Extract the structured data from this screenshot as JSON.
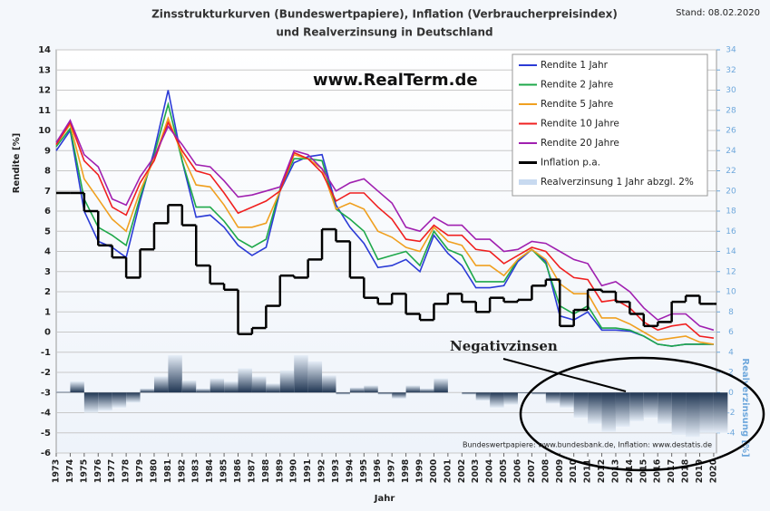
{
  "chart_data": {
    "type": "line",
    "title": "Zinsstrukturkurven (Bundeswertpapiere), Inflation (Verbraucherpreisindex)",
    "subtitle": "und Realverzinsung in Deutschland",
    "date_note": "Stand: 08.02.2020",
    "watermark": "www.RealTerm.de",
    "annotation": "Negativzinsen",
    "source": "Bundeswertpapiere: www.bundesbank.de,  Inflation: www.destatis.de",
    "x_label": "Jahr",
    "y_label": "Rendite [%]",
    "y2_label": "Realverzinsung [%]",
    "x": [
      1973,
      1974,
      1975,
      1976,
      1977,
      1978,
      1979,
      1980,
      1981,
      1982,
      1983,
      1984,
      1985,
      1986,
      1987,
      1988,
      1989,
      1990,
      1991,
      1992,
      1993,
      1994,
      1995,
      1996,
      1997,
      1998,
      1999,
      2000,
      2001,
      2002,
      2003,
      2004,
      2005,
      2006,
      2007,
      2008,
      2009,
      2010,
      2011,
      2012,
      2013,
      2014,
      2015,
      2016,
      2017,
      2018,
      2019,
      2020
    ],
    "xlim": [
      1973,
      2020.2
    ],
    "xticks": [
      1973,
      1974,
      1975,
      1976,
      1977,
      1978,
      1979,
      1980,
      1981,
      1982,
      1983,
      1984,
      1985,
      1986,
      1987,
      1988,
      1989,
      1990,
      1991,
      1992,
      1993,
      1994,
      1995,
      1996,
      1997,
      1998,
      1999,
      2000,
      2001,
      2002,
      2003,
      2004,
      2005,
      2006,
      2007,
      2008,
      2009,
      2010,
      2011,
      2012,
      2013,
      2014,
      2015,
      2016,
      2017,
      2018,
      2019,
      2020
    ],
    "ylim": [
      -6,
      14
    ],
    "yticks": [
      -6,
      -5,
      -4,
      -3,
      -2,
      -1,
      0,
      1,
      2,
      3,
      4,
      5,
      6,
      7,
      8,
      9,
      10,
      11,
      12,
      13,
      14
    ],
    "y2lim": [
      -6,
      34
    ],
    "y2ticks": [
      -4,
      -2,
      0,
      2,
      4,
      6,
      8,
      10,
      12,
      14,
      16,
      18,
      20,
      22,
      24,
      26,
      28,
      30,
      32,
      34
    ],
    "grid": true,
    "legend": "upper right",
    "series": [
      {
        "name": "Rendite 1 Jahr",
        "color": "#2b3bd6",
        "values": [
          9,
          10,
          6,
          4.5,
          4.2,
          3.7,
          6.5,
          9,
          12,
          8.5,
          5.7,
          5.8,
          5.2,
          4.3,
          3.8,
          4.2,
          7,
          8.4,
          8.7,
          8.8,
          6.3,
          5.2,
          4.4,
          3.2,
          3.3,
          3.6,
          3,
          4.8,
          3.9,
          3.3,
          2.2,
          2.2,
          2.3,
          3.5,
          4.1,
          3.5,
          0.8,
          0.6,
          1,
          0.1,
          0.1,
          0.05,
          -0.2,
          -0.6,
          -0.7,
          -0.6,
          -0.6,
          -0.6
        ]
      },
      {
        "name": "Rendite 2 Jahre",
        "color": "#1ea84a",
        "values": [
          9.2,
          10.1,
          6.6,
          5.2,
          4.8,
          4.3,
          6.7,
          8.8,
          11.3,
          8.5,
          6.2,
          6.2,
          5.5,
          4.6,
          4.2,
          4.6,
          7.1,
          8.6,
          8.6,
          8.5,
          6.1,
          5.6,
          5,
          3.6,
          3.8,
          4,
          3.3,
          5,
          4.1,
          3.8,
          2.5,
          2.5,
          2.5,
          3.6,
          4.1,
          3.4,
          1.3,
          0.9,
          1.3,
          0.2,
          0.2,
          0.1,
          -0.2,
          -0.6,
          -0.7,
          -0.6,
          -0.6,
          -0.6
        ]
      },
      {
        "name": "Rendite 5 Jahre",
        "color": "#f0a020",
        "values": [
          9.3,
          10.3,
          7.6,
          6.6,
          5.6,
          5,
          7,
          8.6,
          10.6,
          8.8,
          7.3,
          7.2,
          6.3,
          5.2,
          5.2,
          5.4,
          7,
          8.8,
          8.6,
          8.1,
          6.1,
          6.4,
          6.1,
          5,
          4.7,
          4.2,
          4,
          5.2,
          4.5,
          4.3,
          3.3,
          3.3,
          2.8,
          3.6,
          4.1,
          3.6,
          2.4,
          1.9,
          1.9,
          0.7,
          0.7,
          0.4,
          0,
          -0.4,
          -0.3,
          -0.2,
          -0.5,
          -0.6
        ]
      },
      {
        "name": "Rendite 10 Jahre",
        "color": "#f02020",
        "values": [
          9.3,
          10.4,
          8.5,
          7.8,
          6.2,
          5.8,
          7.4,
          8.5,
          10.4,
          9,
          8,
          7.8,
          6.9,
          5.9,
          6.2,
          6.5,
          7,
          8.9,
          8.6,
          7.9,
          6.5,
          6.9,
          6.9,
          6.2,
          5.6,
          4.6,
          4.5,
          5.3,
          4.8,
          4.8,
          4.1,
          4,
          3.4,
          3.8,
          4.2,
          4,
          3.2,
          2.7,
          2.6,
          1.5,
          1.6,
          1.2,
          0.5,
          0.1,
          0.3,
          0.4,
          -0.2,
          -0.3
        ]
      },
      {
        "name": "Rendite 20 Jahre",
        "color": "#a020b0",
        "values": [
          9.4,
          10.5,
          8.8,
          8.2,
          6.6,
          6.3,
          7.7,
          8.7,
          10.2,
          9.3,
          8.3,
          8.2,
          7.5,
          6.7,
          6.8,
          7,
          7.2,
          9,
          8.8,
          8.1,
          7,
          7.4,
          7.6,
          7,
          6.4,
          5.2,
          5,
          5.7,
          5.3,
          5.3,
          4.6,
          4.6,
          4,
          4.1,
          4.5,
          4.4,
          4,
          3.6,
          3.4,
          2.3,
          2.5,
          2,
          1.2,
          0.6,
          0.9,
          0.9,
          0.3,
          0.1
        ]
      },
      {
        "name": "Inflation p.a.",
        "color": "#000000",
        "step": true,
        "values": [
          6.9,
          6.9,
          6,
          4.3,
          3.7,
          2.7,
          4.1,
          5.4,
          6.3,
          5.3,
          3.3,
          2.4,
          2.1,
          -0.1,
          0.2,
          1.3,
          2.8,
          2.7,
          3.6,
          5.1,
          4.5,
          2.7,
          1.7,
          1.4,
          1.9,
          0.9,
          0.6,
          1.4,
          1.9,
          1.5,
          1,
          1.7,
          1.5,
          1.6,
          2.3,
          2.6,
          0.3,
          1.1,
          2.1,
          2,
          1.5,
          0.9,
          0.3,
          0.5,
          1.5,
          1.8,
          1.4,
          1.4
        ]
      },
      {
        "name": "Realverzinsung 1 Jahr abzgl. 2%",
        "color": "#c8daf0",
        "axis": "y2",
        "bars": true,
        "values": [
          0.1,
          1.1,
          -2,
          -1.8,
          -1.5,
          -1,
          0.4,
          1.6,
          3.7,
          1.2,
          0.4,
          1.4,
          1.1,
          2.4,
          1.6,
          0.9,
          2.2,
          3.7,
          3.1,
          1.7,
          -0.2,
          0.5,
          0.7,
          -0.2,
          -0.6,
          0.7,
          0.4,
          1.4,
          0,
          -0.2,
          -0.8,
          -1.5,
          -1.2,
          -0.1,
          -0.2,
          -1.1,
          -1.5,
          -2.5,
          -3.1,
          -3.9,
          -3.4,
          -2.85,
          -2.5,
          -3.1,
          -4.2,
          -4.4,
          -4,
          -4
        ]
      }
    ]
  }
}
